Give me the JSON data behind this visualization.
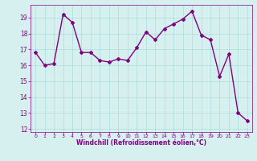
{
  "x": [
    0,
    1,
    2,
    3,
    4,
    5,
    6,
    7,
    8,
    9,
    10,
    11,
    12,
    13,
    14,
    15,
    16,
    17,
    18,
    19,
    20,
    21,
    22,
    23
  ],
  "y": [
    16.8,
    16.0,
    16.1,
    19.2,
    18.7,
    16.8,
    16.8,
    16.3,
    16.2,
    16.4,
    16.3,
    17.1,
    18.1,
    17.6,
    18.3,
    18.6,
    18.9,
    19.4,
    17.9,
    17.6,
    15.3,
    16.7,
    13.0,
    12.5
  ],
  "line_color": "#800080",
  "marker": "D",
  "marker_size": 2,
  "bg_color": "#d6f0f0",
  "grid_color": "#aadddd",
  "xlabel": "Windchill (Refroidissement éolien,°C)",
  "xlabel_color": "#800080",
  "tick_color": "#800080",
  "ylim": [
    11.8,
    19.8
  ],
  "xlim": [
    -0.5,
    23.5
  ],
  "yticks": [
    12,
    13,
    14,
    15,
    16,
    17,
    18,
    19
  ],
  "xticks": [
    0,
    1,
    2,
    3,
    4,
    5,
    6,
    7,
    8,
    9,
    10,
    11,
    12,
    13,
    14,
    15,
    16,
    17,
    18,
    19,
    20,
    21,
    22,
    23
  ],
  "linewidth": 1.0
}
